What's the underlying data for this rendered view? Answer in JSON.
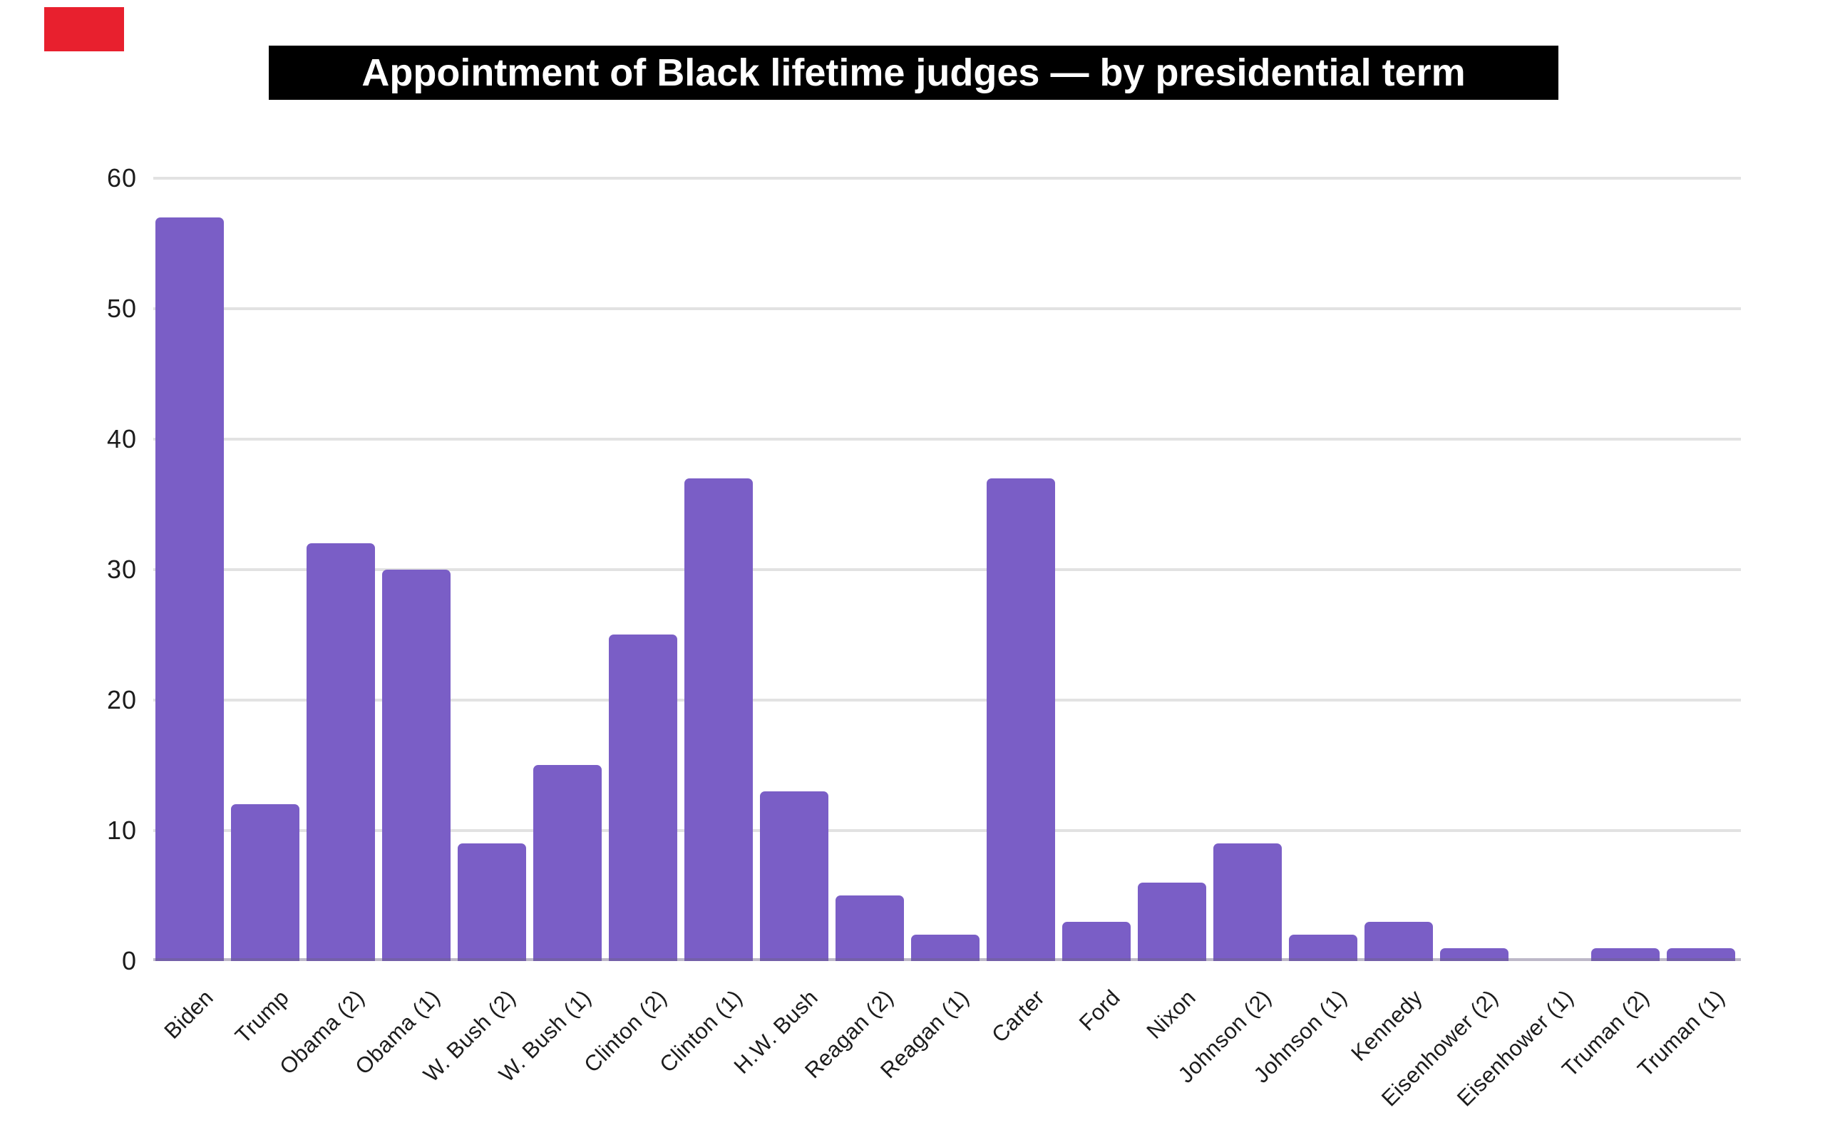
{
  "marker": {
    "color": "#e8202e"
  },
  "title": {
    "text": "Appointment of Black lifetime judges — by presidential term",
    "bg": "#000000",
    "color": "#ffffff"
  },
  "chart_data": {
    "type": "bar",
    "title": "Appointment of Black lifetime judges — by presidential term",
    "categories": [
      "Biden",
      "Trump",
      "Obama (2)",
      "Obama (1)",
      "W. Bush (2)",
      "W. Bush (1)",
      "Clinton (2)",
      "Clinton (1)",
      "H.W. Bush",
      "Reagan (2)",
      "Reagan (1)",
      "Carter",
      "Ford",
      "Nixon",
      "Johnson (2)",
      "Johnson (1)",
      "Kennedy",
      "Eisenhower (2)",
      "Eisenhower (1)",
      "Truman (2)",
      "Truman (1)"
    ],
    "values": [
      57,
      12,
      32,
      30,
      9,
      15,
      25,
      37,
      13,
      5,
      2,
      37,
      3,
      6,
      9,
      2,
      3,
      1,
      0,
      1,
      1
    ],
    "xlabel": "",
    "ylabel": "",
    "ylim": [
      0,
      60
    ],
    "yticks": [
      0,
      10,
      20,
      30,
      40,
      50,
      60
    ],
    "grid": true,
    "legend_position": "none",
    "bar_color": "#7A5EC6",
    "gridline_color": "#e2e2e2",
    "axis_line_color": "rgba(109,98,134,0.45)",
    "label_color": "#1c1c1c"
  }
}
